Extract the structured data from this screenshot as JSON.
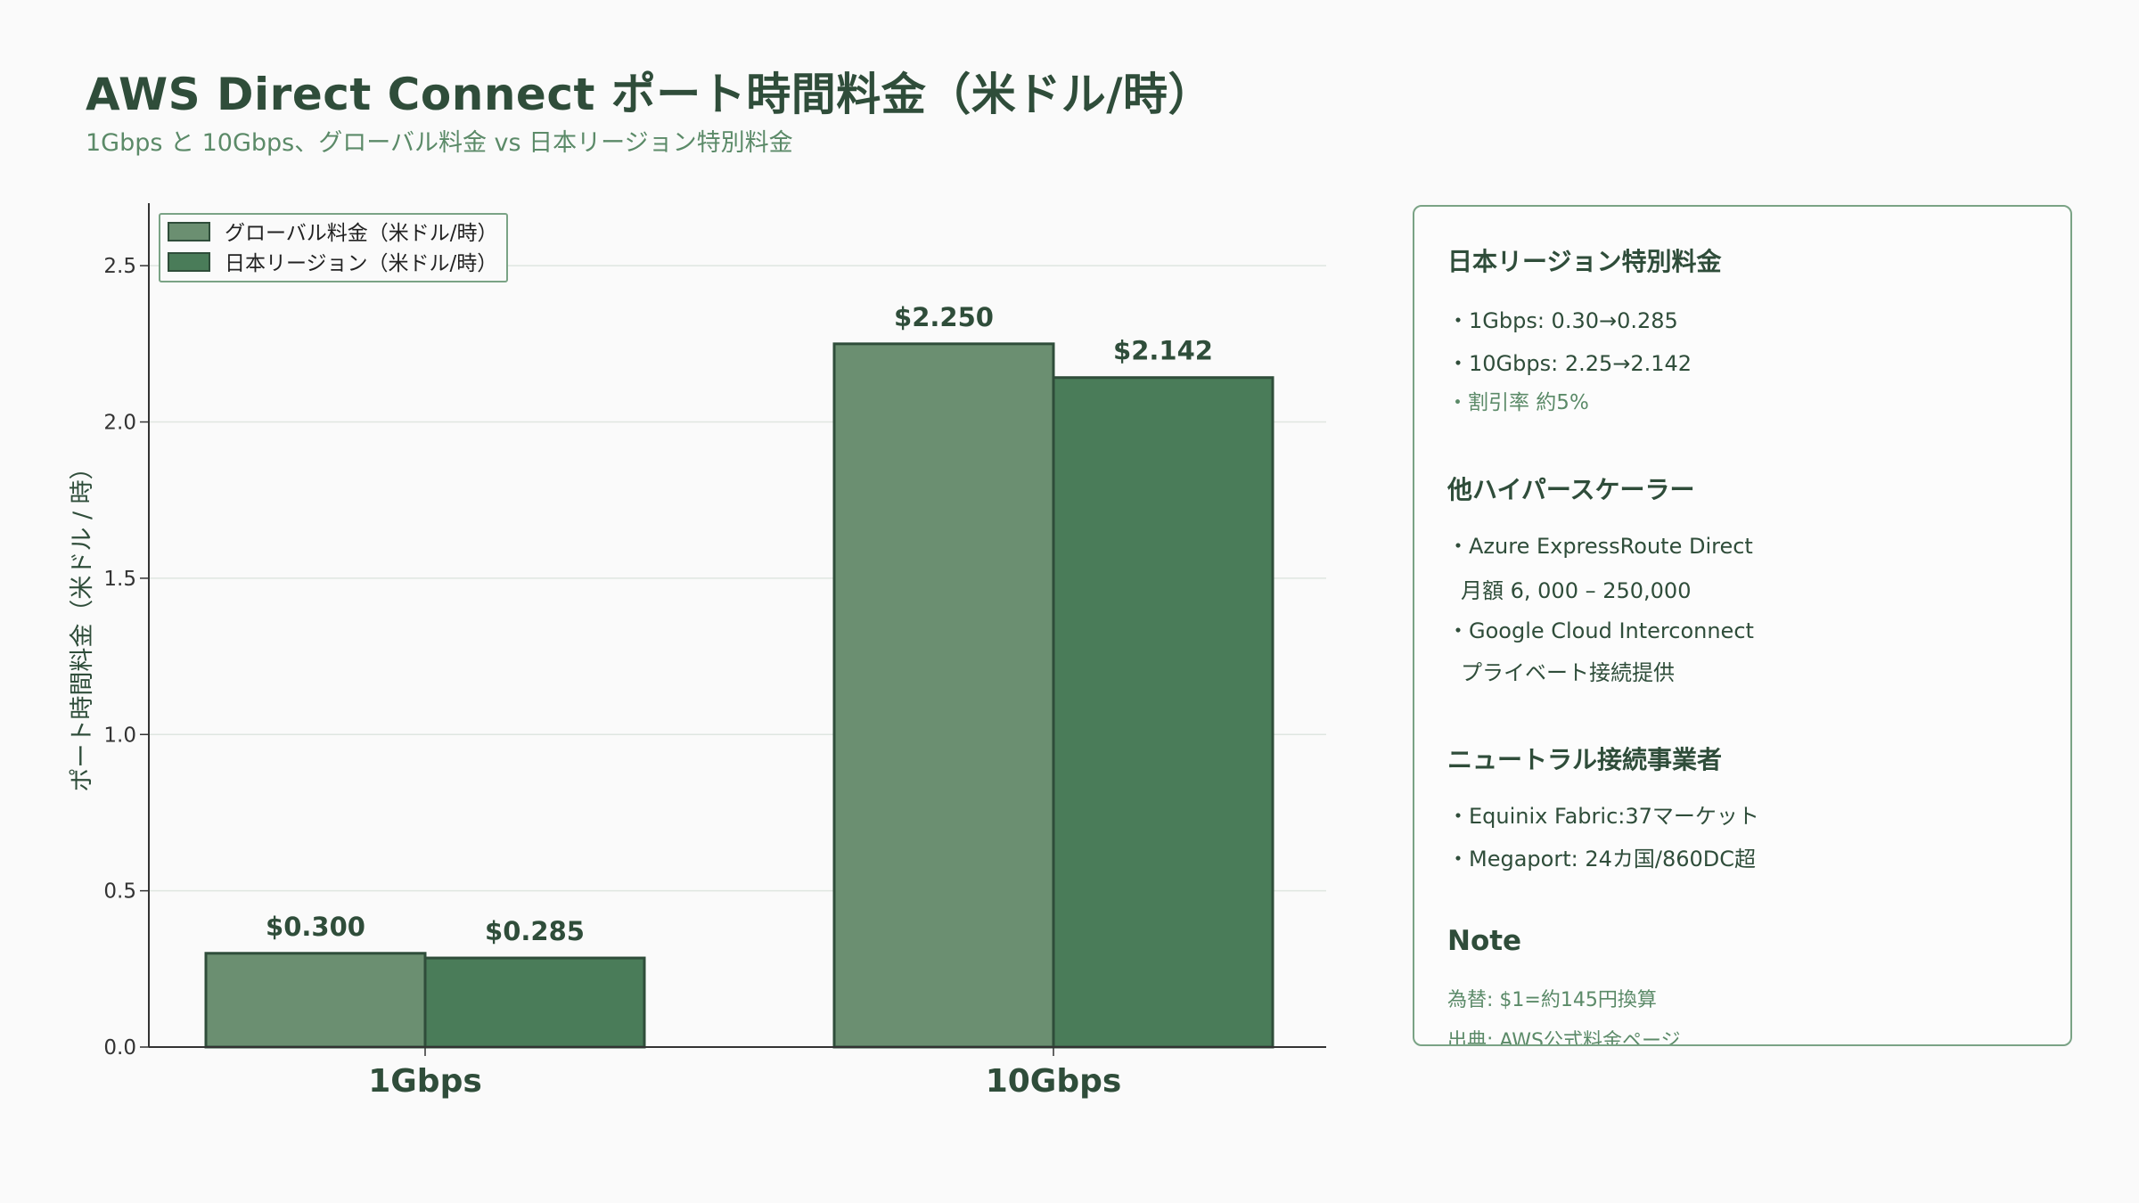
{
  "header": {
    "title": "AWS Direct Connect ポート時間料金（米ドル/時）",
    "subtitle": "1Gbps と 10Gbps、グローバル料金 vs 日本リージョン特別料金"
  },
  "chart_data": {
    "type": "bar",
    "categories": [
      "1Gbps",
      "10Gbps"
    ],
    "series": [
      {
        "name": "グローバル料金（米ドル/時）",
        "values": [
          0.3,
          2.25
        ],
        "labels": [
          "$0.300",
          "$2.250"
        ],
        "color": "#6b8f71"
      },
      {
        "name": "日本リージョン（米ドル/時）",
        "values": [
          0.285,
          2.142
        ],
        "labels": [
          "$0.285",
          "$2.142"
        ],
        "color": "#4a7c59"
      }
    ],
    "ylabel": "ポート時間料金（米ドル / 時）",
    "xlabel": "",
    "ylim": [
      0,
      2.7
    ],
    "yticks": [
      "0.0",
      "0.5",
      "1.0",
      "1.5",
      "2.0",
      "2.5"
    ],
    "ytick_values": [
      0,
      0.5,
      1.0,
      1.5,
      2.0,
      2.5
    ],
    "grid": "horizontal",
    "legend": "top-left"
  },
  "panel": {
    "sections": [
      {
        "heading": "日本リージョン特別料金",
        "lines": [
          {
            "text": "・1Gbps: 0.30→0.285"
          },
          {
            "text": "・10Gbps: 2.25→2.142"
          },
          {
            "text": "・割引率 約5%",
            "style": "accent"
          }
        ]
      },
      {
        "heading": "他ハイパースケーラー",
        "lines": [
          {
            "text": "・Azure ExpressRoute Direct"
          },
          {
            "text": "月額 6, 000 – 250,000",
            "style": "indent"
          },
          {
            "text": "・Google Cloud Interconnect"
          },
          {
            "text": "プライベート接続提供",
            "style": "indent"
          }
        ]
      },
      {
        "heading": "ニュートラル接続事業者",
        "lines": [
          {
            "text": "・Equinix Fabric:37マーケット"
          },
          {
            "text": "・Megaport: 24カ国/860DC超"
          }
        ]
      },
      {
        "heading": "Note",
        "lines": [
          {
            "text": "為替: $1=約145円換算",
            "style": "small"
          },
          {
            "text": "出典: AWS公式料金ページ",
            "style": "small"
          }
        ]
      }
    ]
  },
  "colors": {
    "title": "#2f4d3a",
    "subtitle": "#5b8a68",
    "global_bar": "#6b8f71",
    "japan_bar": "#4a7c59",
    "bar_edge": "#2f4d3a",
    "panel_border": "#7aa385"
  }
}
